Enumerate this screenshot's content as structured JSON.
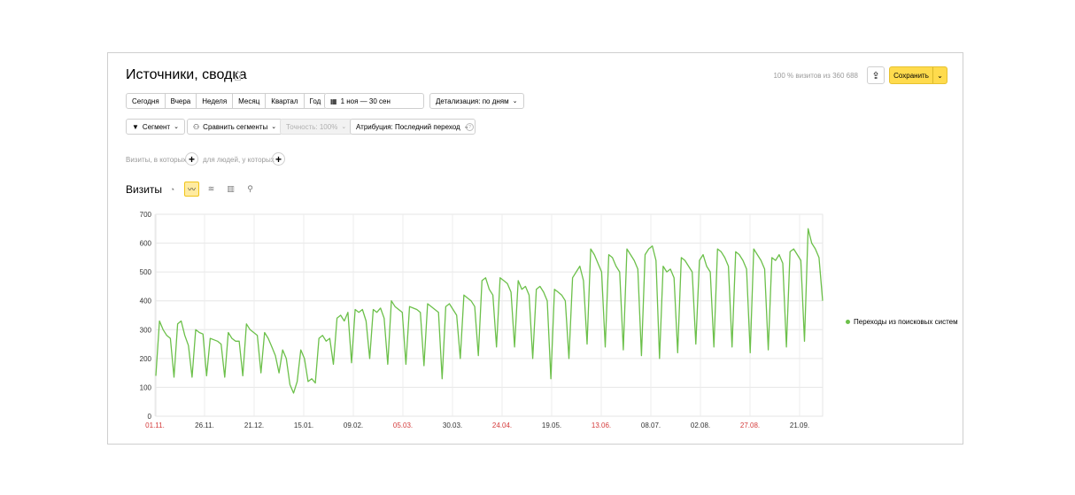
{
  "header": {
    "title": "Источники, сводка",
    "visits_info": "100 % визитов из 360 688",
    "save_label": "Сохранить"
  },
  "period_buttons": [
    "Сегодня",
    "Вчера",
    "Неделя",
    "Месяц",
    "Квартал",
    "Год"
  ],
  "date_range": "1 ноя  — 30 сен",
  "detail": "Детализация: по дням",
  "segment": "Сегмент",
  "compare": "Сравнить сегменты",
  "accuracy": "Точность: 100%",
  "attribution": "Атрибуция: Последний переход",
  "filters": {
    "visits_where": "Визиты, в которых",
    "people_where": "для людей, у которых"
  },
  "metric": "Визиты",
  "icons": {
    "bookmark": "bookmark-icon",
    "share": "share-icon",
    "dropdown": "chevron-down-icon",
    "calendar": "calendar-icon",
    "filter": "filter-icon",
    "compare": "compare-icon",
    "help": "help-icon",
    "plus": "plus-icon",
    "pie_chart": "pie-chart-icon",
    "line_chart": "line-chart-icon",
    "area_chart": "area-chart-icon",
    "bar_chart": "bar-chart-icon",
    "map": "map-pin-icon"
  },
  "colors": {
    "accent": "#ffdb4d",
    "series": "#6cc04a",
    "weekend_tick": "#d43b3b"
  },
  "chart_data": {
    "type": "line",
    "ylim": [
      0,
      700
    ],
    "yticks": [
      0,
      100,
      200,
      300,
      400,
      500,
      600,
      700
    ],
    "xticks": [
      {
        "label": "01.11.",
        "red": true
      },
      {
        "label": "26.11.",
        "red": false
      },
      {
        "label": "21.12.",
        "red": false
      },
      {
        "label": "15.01.",
        "red": false
      },
      {
        "label": "09.02.",
        "red": false
      },
      {
        "label": "05.03.",
        "red": true
      },
      {
        "label": "30.03.",
        "red": false
      },
      {
        "label": "24.04.",
        "red": true
      },
      {
        "label": "19.05.",
        "red": false
      },
      {
        "label": "13.06.",
        "red": true
      },
      {
        "label": "08.07.",
        "red": false
      },
      {
        "label": "02.08.",
        "red": false
      },
      {
        "label": "27.08.",
        "red": true
      },
      {
        "label": "21.09.",
        "red": false
      }
    ],
    "series": [
      {
        "name": "Переходы из поисковых систем",
        "values": [
          140,
          330,
          300,
          280,
          270,
          135,
          320,
          330,
          280,
          245,
          135,
          300,
          290,
          285,
          140,
          270,
          265,
          260,
          250,
          135,
          290,
          270,
          260,
          260,
          140,
          320,
          300,
          290,
          280,
          150,
          290,
          270,
          240,
          210,
          150,
          230,
          200,
          110,
          80,
          120,
          230,
          200,
          120,
          130,
          115,
          270,
          280,
          260,
          270,
          180,
          340,
          350,
          330,
          360,
          185,
          370,
          360,
          370,
          330,
          200,
          370,
          360,
          375,
          340,
          180,
          400,
          380,
          370,
          360,
          180,
          380,
          375,
          370,
          360,
          175,
          390,
          380,
          370,
          360,
          130,
          380,
          390,
          370,
          350,
          200,
          420,
          410,
          400,
          380,
          210,
          470,
          480,
          440,
          420,
          240,
          480,
          470,
          460,
          430,
          240,
          470,
          440,
          450,
          420,
          200,
          440,
          450,
          430,
          400,
          130,
          440,
          430,
          420,
          400,
          200,
          480,
          500,
          520,
          470,
          250,
          580,
          560,
          530,
          500,
          240,
          560,
          550,
          520,
          500,
          230,
          580,
          560,
          540,
          510,
          210,
          560,
          580,
          590,
          540,
          200,
          520,
          500,
          510,
          480,
          220,
          550,
          540,
          520,
          500,
          250,
          540,
          560,
          520,
          500,
          240,
          580,
          570,
          550,
          520,
          240,
          570,
          560,
          540,
          510,
          220,
          580,
          560,
          540,
          510,
          230,
          550,
          540,
          560,
          530,
          240,
          570,
          580,
          560,
          540,
          260,
          650,
          600,
          580,
          550,
          400
        ]
      }
    ]
  }
}
